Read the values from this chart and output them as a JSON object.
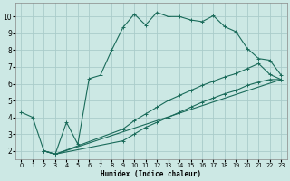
{
  "xlabel": "Humidex (Indice chaleur)",
  "bg_color": "#cce8e4",
  "grid_color": "#aaccca",
  "line_color": "#1a6b5a",
  "xlim": [
    -0.5,
    23.5
  ],
  "ylim": [
    1.5,
    10.8
  ],
  "xticks": [
    0,
    1,
    2,
    3,
    4,
    5,
    6,
    7,
    8,
    9,
    10,
    11,
    12,
    13,
    14,
    15,
    16,
    17,
    18,
    19,
    20,
    21,
    22,
    23
  ],
  "yticks": [
    2,
    3,
    4,
    5,
    6,
    7,
    8,
    9,
    10
  ],
  "curve1_x": [
    0,
    1,
    2,
    3,
    4,
    5,
    6,
    7,
    8,
    9,
    10,
    11,
    12,
    13,
    14,
    15,
    16,
    17,
    18,
    19,
    20,
    21,
    22,
    23
  ],
  "curve1_y": [
    4.3,
    4.0,
    2.0,
    1.8,
    3.7,
    2.4,
    6.3,
    6.5,
    8.0,
    9.35,
    10.15,
    9.5,
    10.25,
    10.0,
    10.0,
    9.8,
    9.7,
    10.05,
    9.4,
    9.1,
    8.1,
    7.5,
    7.4,
    6.5
  ],
  "curve2_x": [
    2,
    3,
    23
  ],
  "curve2_y": [
    2.0,
    1.8,
    6.25
  ],
  "curve3_x": [
    2,
    3,
    9,
    10,
    11,
    12,
    13,
    14,
    15,
    16,
    17,
    18,
    19,
    20,
    21,
    22,
    23
  ],
  "curve3_y": [
    2.0,
    1.8,
    3.3,
    3.8,
    4.2,
    4.6,
    5.0,
    5.3,
    5.6,
    5.9,
    6.15,
    6.4,
    6.6,
    6.9,
    7.2,
    6.55,
    6.25
  ],
  "curve4_x": [
    2,
    3,
    9,
    10,
    11,
    12,
    13,
    14,
    15,
    16,
    17,
    18,
    19,
    20,
    21,
    22,
    23
  ],
  "curve4_y": [
    2.0,
    1.8,
    2.6,
    3.0,
    3.4,
    3.7,
    4.0,
    4.3,
    4.6,
    4.9,
    5.15,
    5.4,
    5.6,
    5.9,
    6.1,
    6.25,
    6.25
  ]
}
